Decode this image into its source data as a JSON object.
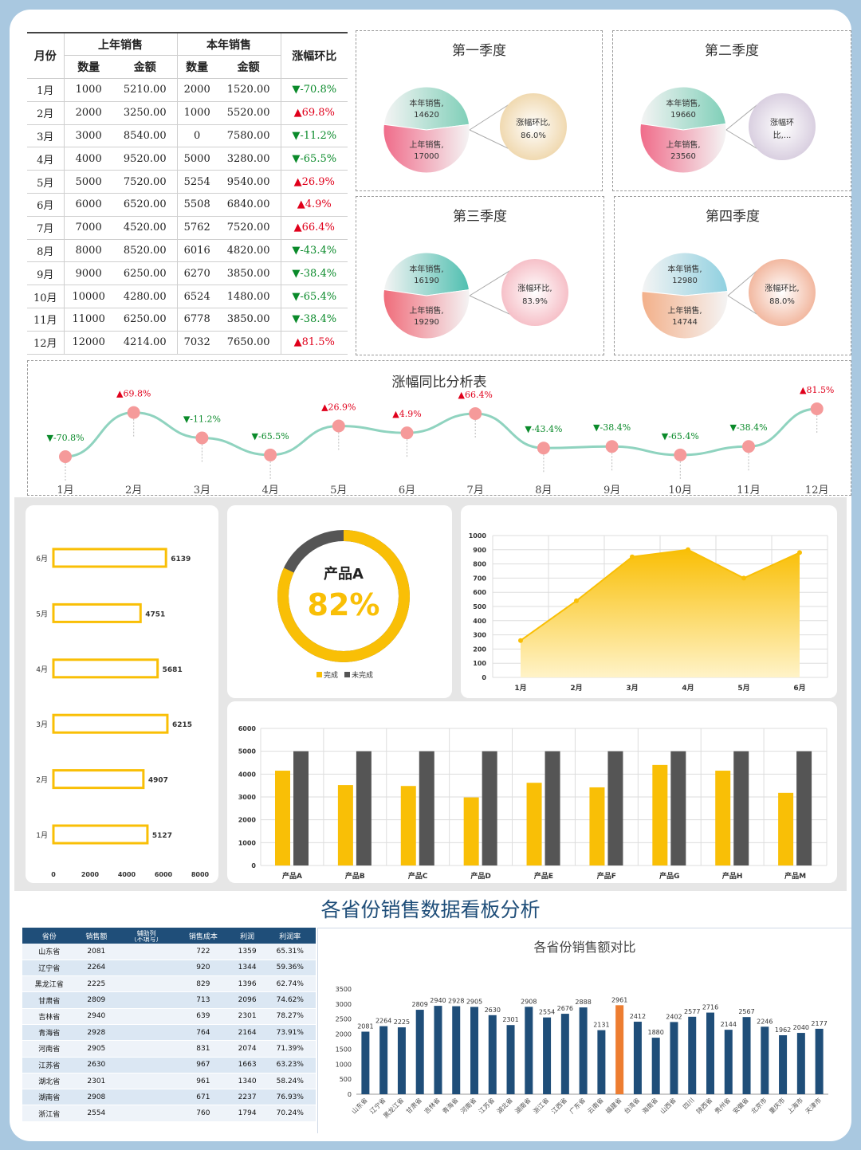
{
  "table": {
    "month_header": "月份",
    "last_year_header": "上年销售",
    "this_year_header": "本年销售",
    "change_header": "涨幅环比",
    "qty_header": "数量",
    "amount_header": "金额",
    "rows": [
      {
        "month": "1月",
        "lq": "1000",
        "la": "5210.00",
        "tq": "2000",
        "ta": "1520.00",
        "chg": "▼-70.8%",
        "dir": "neg"
      },
      {
        "month": "2月",
        "lq": "2000",
        "la": "3250.00",
        "tq": "1000",
        "ta": "5520.00",
        "chg": "▲69.8%",
        "dir": "pos"
      },
      {
        "month": "3月",
        "lq": "3000",
        "la": "8540.00",
        "tq": "0",
        "ta": "7580.00",
        "chg": "▼-11.2%",
        "dir": "neg"
      },
      {
        "month": "4月",
        "lq": "4000",
        "la": "9520.00",
        "tq": "5000",
        "ta": "3280.00",
        "chg": "▼-65.5%",
        "dir": "neg"
      },
      {
        "month": "5月",
        "lq": "5000",
        "la": "7520.00",
        "tq": "5254",
        "ta": "9540.00",
        "chg": "▲26.9%",
        "dir": "pos"
      },
      {
        "month": "6月",
        "lq": "6000",
        "la": "6520.00",
        "tq": "5508",
        "ta": "6840.00",
        "chg": "▲4.9%",
        "dir": "pos"
      },
      {
        "month": "7月",
        "lq": "7000",
        "la": "4520.00",
        "tq": "5762",
        "ta": "7520.00",
        "chg": "▲66.4%",
        "dir": "pos"
      },
      {
        "month": "8月",
        "lq": "8000",
        "la": "8520.00",
        "tq": "6016",
        "ta": "4820.00",
        "chg": "▼-43.4%",
        "dir": "neg"
      },
      {
        "month": "9月",
        "lq": "9000",
        "la": "6250.00",
        "tq": "6270",
        "ta": "3850.00",
        "chg": "▼-38.4%",
        "dir": "neg"
      },
      {
        "month": "10月",
        "lq": "10000",
        "la": "4280.00",
        "tq": "6524",
        "ta": "1480.00",
        "chg": "▼-65.4%",
        "dir": "neg"
      },
      {
        "month": "11月",
        "lq": "11000",
        "la": "6250.00",
        "tq": "6778",
        "ta": "3850.00",
        "chg": "▼-38.4%",
        "dir": "neg"
      },
      {
        "month": "12月",
        "lq": "12000",
        "la": "4214.00",
        "tq": "7032",
        "ta": "7650.00",
        "chg": "▲81.5%",
        "dir": "pos"
      }
    ]
  },
  "quarters": [
    {
      "title": "第一季度",
      "this_label": "本年销售,",
      "this_value": "14620",
      "last_label": "上年销售,",
      "last_value": "17000",
      "change_label": "涨幅环比,",
      "change_value": "86.0%",
      "this_share": 0.46,
      "colors": [
        "#7fcfb8",
        "#f06c8a",
        "#f0d9b0"
      ]
    },
    {
      "title": "第二季度",
      "this_label": "本年销售,",
      "this_value": "19660",
      "last_label": "上年销售,",
      "last_value": "23560",
      "change_label": "涨幅环",
      "change_value": "比,...",
      "this_share": 0.455,
      "colors": [
        "#7fcfb8",
        "#f06c8a",
        "#d9cfe0"
      ]
    },
    {
      "title": "第三季度",
      "this_label": "本年销售,",
      "this_value": "16190",
      "last_label": "上年销售,",
      "last_value": "19290",
      "change_label": "涨幅环比,",
      "change_value": "83.9%",
      "this_share": 0.456,
      "colors": [
        "#4fbfb0",
        "#f06c7a",
        "#f6c0c8"
      ]
    },
    {
      "title": "第四季度",
      "this_label": "本年销售,",
      "this_value": "12980",
      "last_label": "上年销售,",
      "last_value": "14744",
      "change_label": "涨幅环比,",
      "change_value": "88.0%",
      "this_share": 0.468,
      "colors": [
        "#8fd0e0",
        "#f3b08a",
        "#f2b8a0"
      ]
    }
  ],
  "chart_data": [
    {
      "type": "line",
      "title": "涨幅同比分析表",
      "categories": [
        "1月",
        "2月",
        "3月",
        "4月",
        "5月",
        "6月",
        "7月",
        "8月",
        "9月",
        "10月",
        "11月",
        "12月"
      ],
      "values": [
        -70.8,
        69.8,
        -11.2,
        -65.5,
        26.9,
        4.9,
        66.4,
        -43.4,
        -38.4,
        -65.4,
        -38.4,
        81.5
      ],
      "labels": [
        "▼-70.8%",
        "▲69.8%",
        "▼-11.2%",
        "▼-65.5%",
        "▲26.9%",
        "▲4.9%",
        "▲66.4%",
        "▼-43.4%",
        "▼-38.4%",
        "▼-65.4%",
        "▼-38.4%",
        "▲81.5%"
      ]
    },
    {
      "type": "bar",
      "orientation": "horizontal",
      "categories": [
        "6月",
        "5月",
        "4月",
        "3月",
        "2月",
        "1月"
      ],
      "values": [
        6139,
        4751,
        5681,
        6215,
        4907,
        5127
      ],
      "xticks": [
        "0",
        "2000",
        "4000",
        "6000",
        "8000"
      ],
      "xlim": [
        0,
        8000
      ]
    },
    {
      "type": "pie",
      "center_label": "产品A",
      "percent_label": "82%",
      "values": [
        82,
        18
      ],
      "legend": [
        "完成",
        "未完成"
      ],
      "colors": [
        "#f9bf06",
        "#555555"
      ]
    },
    {
      "type": "area",
      "categories": [
        "1月",
        "2月",
        "3月",
        "4月",
        "5月",
        "6月"
      ],
      "values": [
        260,
        540,
        850,
        900,
        700,
        880
      ],
      "ylim": [
        0,
        1000
      ],
      "yticks": [
        "0",
        "100",
        "200",
        "300",
        "400",
        "500",
        "600",
        "700",
        "800",
        "900",
        "1000"
      ]
    },
    {
      "type": "bar",
      "categories": [
        "产品A",
        "产品B",
        "产品C",
        "产品D",
        "产品E",
        "产品F",
        "产品G",
        "产品H",
        "产品M"
      ],
      "series": [
        {
          "values": [
            4150,
            3520,
            3480,
            2980,
            3620,
            3420,
            4400,
            4150,
            3180
          ]
        },
        {
          "values": [
            5000,
            5000,
            5000,
            5000,
            5000,
            5000,
            5000,
            5000,
            5000
          ]
        }
      ],
      "ylim": [
        0,
        6000
      ],
      "yticks": [
        "0",
        "1000",
        "2000",
        "3000",
        "4000",
        "5000",
        "6000"
      ]
    },
    {
      "type": "bar",
      "title": "各省份销售额对比",
      "categories": [
        "山东省",
        "辽宁省",
        "黑龙江省",
        "甘肃省",
        "吉林省",
        "青海省",
        "河南省",
        "江苏省",
        "湖北省",
        "湖南省",
        "浙江省",
        "江西省",
        "广东省",
        "云南省",
        "福建省",
        "台湾省",
        "海南省",
        "山西省",
        "四川",
        "陕西省",
        "贵州省",
        "安徽省",
        "北京市",
        "重庆市",
        "上海市",
        "天津市"
      ],
      "values": [
        2081,
        2264,
        2225,
        2809,
        2940,
        2928,
        2905,
        2630,
        2301,
        2908,
        2554,
        2676,
        2888,
        2131,
        2961,
        2412,
        1880,
        2402,
        2577,
        2716,
        2144,
        2567,
        2246,
        1962,
        2040,
        2177
      ],
      "highlight_index": 14,
      "ylim": [
        0,
        3500
      ],
      "yticks": [
        "0",
        "500",
        "1000",
        "1500",
        "2000",
        "2500",
        "3000",
        "3500"
      ]
    }
  ],
  "board_title": "各省份销售数据看板分析",
  "province_table": {
    "headers": [
      "省份",
      "销售额",
      "辅助列（不填写）",
      "销售成本",
      "利润",
      "利润率"
    ],
    "helper_top": "辅助列",
    "helper_bottom": "（不填写）",
    "rows": [
      [
        "山东省",
        "2081",
        "",
        "722",
        "1359",
        "65.31%"
      ],
      [
        "辽宁省",
        "2264",
        "",
        "920",
        "1344",
        "59.36%"
      ],
      [
        "黑龙江省",
        "2225",
        "",
        "829",
        "1396",
        "62.74%"
      ],
      [
        "甘肃省",
        "2809",
        "",
        "713",
        "2096",
        "74.62%"
      ],
      [
        "吉林省",
        "2940",
        "",
        "639",
        "2301",
        "78.27%"
      ],
      [
        "青海省",
        "2928",
        "",
        "764",
        "2164",
        "73.91%"
      ],
      [
        "河南省",
        "2905",
        "",
        "831",
        "2074",
        "71.39%"
      ],
      [
        "江苏省",
        "2630",
        "",
        "967",
        "1663",
        "63.23%"
      ],
      [
        "湖北省",
        "2301",
        "",
        "961",
        "1340",
        "58.24%"
      ],
      [
        "湖南省",
        "2908",
        "",
        "671",
        "2237",
        "76.93%"
      ],
      [
        "浙江省",
        "2554",
        "",
        "760",
        "1794",
        "70.24%"
      ]
    ]
  },
  "colors": {
    "accent": "#f9bf06",
    "navy": "#1f4e79",
    "highlight": "#ed7d31",
    "teal": "#8fd3bf",
    "pink": "#f59a9a"
  }
}
